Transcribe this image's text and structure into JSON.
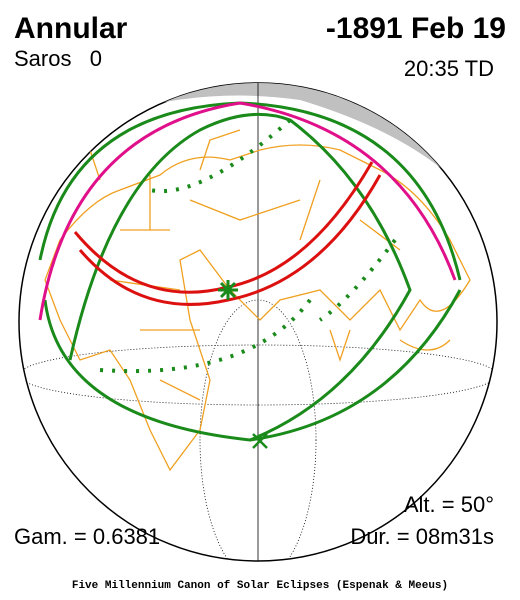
{
  "header": {
    "type": "Annular",
    "date": "-1891 Feb 19",
    "saros": "Saros   0",
    "time": "20:35 TD"
  },
  "info": {
    "altitude": "Alt. = 50°",
    "gamma": "Gam. = 0.6381",
    "duration": "Dur. = 08m31s"
  },
  "footer": "Five Millennium Canon of Solar Eclipses (Espenak & Meeus)"
}
